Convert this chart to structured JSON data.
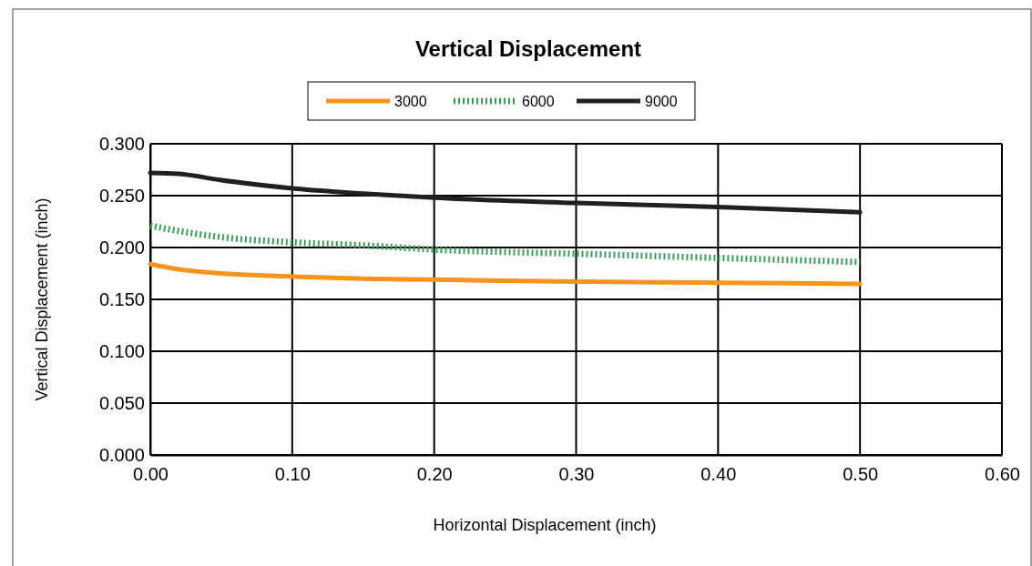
{
  "chart_data": {
    "type": "line",
    "title": "Vertical Displacement",
    "xlabel": "Horizontal Displacement (inch)",
    "ylabel": "Vertical Displacement (inch)",
    "xlim": [
      0,
      0.6
    ],
    "xticks": [
      {
        "value": 0,
        "label": "0.00"
      },
      {
        "value": 0.1,
        "label": "0.10"
      },
      {
        "value": 0.2,
        "label": "0.20"
      },
      {
        "value": 0.3,
        "label": "0.30"
      },
      {
        "value": 0.4,
        "label": "0.40"
      },
      {
        "value": 0.5,
        "label": "0.50"
      },
      {
        "value": 0.6,
        "label": "0.60"
      }
    ],
    "ylim": [
      0,
      0.3
    ],
    "yticks": [
      {
        "value": 0,
        "label": "0.000"
      },
      {
        "value": 0.05,
        "label": "0.050"
      },
      {
        "value": 0.1,
        "label": "0.100"
      },
      {
        "value": 0.15,
        "label": "0.150"
      },
      {
        "value": 0.2,
        "label": "0.200"
      },
      {
        "value": 0.25,
        "label": "0.250"
      },
      {
        "value": 0.3,
        "label": "0.300"
      }
    ],
    "grid": true,
    "legend": "top",
    "marker": "none",
    "x": [
      0,
      0.02,
      0.05,
      0.1,
      0.15,
      0.2,
      0.3,
      0.4,
      0.5
    ],
    "series": [
      {
        "name": "3000",
        "color": "#f7931e",
        "line_style": "solid",
        "values": [
          0.184,
          0.179,
          0.175,
          0.172,
          0.17,
          0.169,
          0.167,
          0.166,
          0.165
        ]
      },
      {
        "name": "6000",
        "color": "#3f9a5c",
        "line_style": "dotted",
        "values": [
          0.221,
          0.216,
          0.21,
          0.205,
          0.202,
          0.198,
          0.194,
          0.19,
          0.186
        ]
      },
      {
        "name": "9000",
        "color": "#231f20",
        "line_style": "solid",
        "values": [
          0.272,
          0.271,
          0.265,
          0.257,
          0.252,
          0.248,
          0.243,
          0.239,
          0.234
        ]
      }
    ]
  }
}
